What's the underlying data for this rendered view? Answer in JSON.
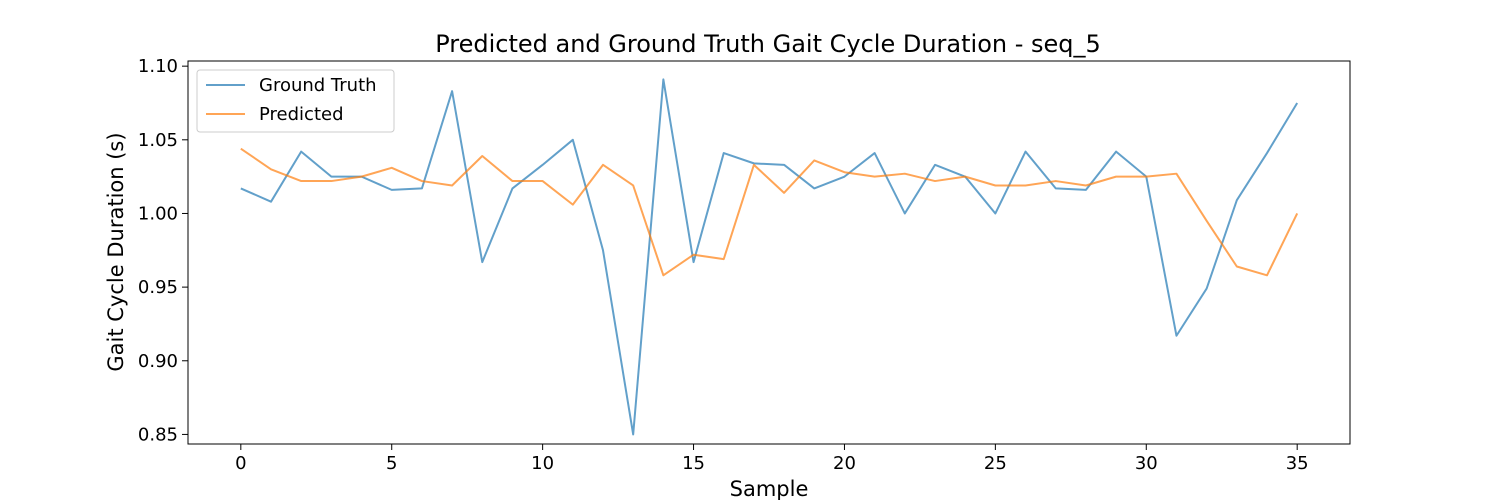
{
  "chart_data": {
    "type": "line",
    "title": "Predicted and Ground Truth Gait Cycle Duration - seq_5",
    "xlabel": "Sample",
    "ylabel": "Gait Cycle Duration (s)",
    "xlim": [
      -1.75,
      36.75
    ],
    "ylim": [
      0.8435,
      1.1035
    ],
    "xticks": [
      0,
      5,
      10,
      15,
      20,
      25,
      30,
      35
    ],
    "xtick_labels": [
      "0",
      "5",
      "10",
      "15",
      "20",
      "25",
      "30",
      "35"
    ],
    "yticks": [
      0.85,
      0.9,
      0.95,
      1.0,
      1.05,
      1.1
    ],
    "ytick_labels": [
      "0.85",
      "0.90",
      "0.95",
      "1.00",
      "1.05",
      "1.10"
    ],
    "grid": false,
    "legend_position": "top-left",
    "x": [
      0,
      1,
      2,
      3,
      4,
      5,
      6,
      7,
      8,
      9,
      10,
      11,
      12,
      13,
      14,
      15,
      16,
      17,
      18,
      19,
      20,
      21,
      22,
      23,
      24,
      25,
      26,
      27,
      28,
      29,
      30,
      31,
      32,
      33,
      34,
      35
    ],
    "series": [
      {
        "name": "Ground Truth",
        "color": "#1f77b4",
        "values": [
          1.017,
          1.008,
          1.042,
          1.025,
          1.025,
          1.016,
          1.017,
          1.083,
          0.967,
          1.017,
          1.033,
          1.05,
          0.975,
          0.85,
          1.091,
          0.967,
          1.041,
          1.034,
          1.033,
          1.017,
          1.025,
          1.041,
          1.0,
          1.033,
          1.025,
          1.0,
          1.042,
          1.017,
          1.016,
          1.042,
          1.025,
          0.917,
          0.949,
          1.009,
          1.041,
          1.075
        ]
      },
      {
        "name": "Predicted",
        "color": "#ff7f0e",
        "values": [
          1.044,
          1.03,
          1.022,
          1.022,
          1.025,
          1.031,
          1.022,
          1.019,
          1.039,
          1.022,
          1.022,
          1.006,
          1.033,
          1.019,
          0.958,
          0.972,
          0.969,
          1.033,
          1.014,
          1.036,
          1.028,
          1.025,
          1.027,
          1.022,
          1.025,
          1.019,
          1.019,
          1.022,
          1.019,
          1.025,
          1.025,
          1.027,
          0.995,
          0.964,
          0.958,
          1.0
        ]
      }
    ]
  }
}
